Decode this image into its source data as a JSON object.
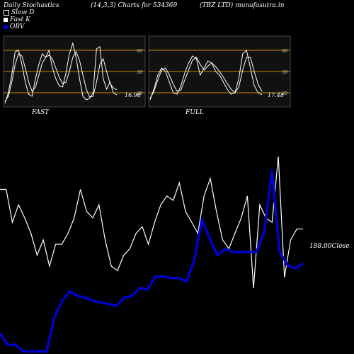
{
  "header": {
    "title": "Daily Stochastics",
    "params": "(14,3,3) Charts for 534369",
    "source": "(TBZ LTD) munafasutra.in"
  },
  "legend": [
    {
      "label": "Slow  D",
      "color": "#ffffff"
    },
    {
      "label": "Fast K",
      "color": "#ffffff"
    },
    {
      "label": "OBV",
      "color": "#0000cc"
    }
  ],
  "colors": {
    "background": "#000000",
    "panel_bg": "#111111",
    "grid": "#cc8800",
    "line": "#ffffff",
    "obv": "#0000cc"
  },
  "chart_data": [
    {
      "type": "line",
      "panel": "FAST",
      "label": "FAST",
      "ylim": [
        0,
        100
      ],
      "yticks": [
        20,
        50,
        80
      ],
      "last_value_label": "16.98",
      "series": [
        {
          "name": "Fast K",
          "values": [
            5,
            20,
            45,
            78,
            80,
            60,
            35,
            18,
            15,
            40,
            60,
            75,
            70,
            80,
            55,
            40,
            30,
            28,
            48,
            75,
            90,
            70,
            40,
            15,
            10,
            12,
            20,
            82,
            85,
            40,
            25,
            35,
            20,
            17
          ]
        },
        {
          "name": "Slow  D",
          "values": [
            8,
            15,
            35,
            60,
            75,
            72,
            55,
            35,
            22,
            28,
            45,
            62,
            70,
            73,
            68,
            55,
            42,
            33,
            35,
            50,
            70,
            78,
            66,
            45,
            25,
            14,
            15,
            35,
            60,
            68,
            50,
            33,
            27,
            24
          ]
        }
      ]
    },
    {
      "type": "line",
      "panel": "FULL",
      "label": "FULL",
      "ylim": [
        0,
        100
      ],
      "yticks": [
        20,
        50,
        80
      ],
      "last_value_label": "17.48",
      "series": [
        {
          "name": "Fast K",
          "values": [
            10,
            25,
            45,
            55,
            50,
            35,
            20,
            18,
            30,
            48,
            62,
            72,
            68,
            45,
            55,
            65,
            62,
            50,
            45,
            35,
            25,
            18,
            20,
            40,
            75,
            80,
            55,
            30,
            20,
            17
          ]
        },
        {
          "name": "Slow  D",
          "values": [
            12,
            22,
            38,
            52,
            55,
            45,
            32,
            22,
            24,
            38,
            52,
            66,
            70,
            60,
            52,
            58,
            62,
            57,
            50,
            42,
            33,
            25,
            20,
            28,
            52,
            70,
            70,
            50,
            32,
            22
          ]
        }
      ]
    },
    {
      "type": "line",
      "panel": "main",
      "close_label": "188.00Close",
      "series": [
        {
          "name": "Stochastic",
          "values": [
            75,
            75,
            60,
            68,
            62,
            55,
            45,
            52,
            40,
            50,
            50,
            55,
            62,
            75,
            65,
            62,
            68,
            52,
            40,
            38,
            45,
            48,
            55,
            58,
            50,
            60,
            68,
            72,
            70,
            78,
            65,
            60,
            55,
            72,
            80,
            65,
            52,
            48,
            55,
            62,
            72,
            30,
            68,
            62,
            60,
            90,
            35,
            52,
            57,
            57
          ]
        },
        {
          "name": "OBV",
          "values": [
            10,
            3,
            3,
            -1,
            -1,
            -1,
            -1,
            20,
            30,
            36,
            33,
            32,
            30,
            29,
            28,
            27,
            32,
            33,
            38,
            37,
            45,
            45,
            44,
            44,
            42,
            55,
            80,
            68,
            58,
            62,
            60,
            60,
            60,
            60,
            72,
            110,
            60,
            52,
            50,
            53
          ]
        }
      ]
    }
  ]
}
